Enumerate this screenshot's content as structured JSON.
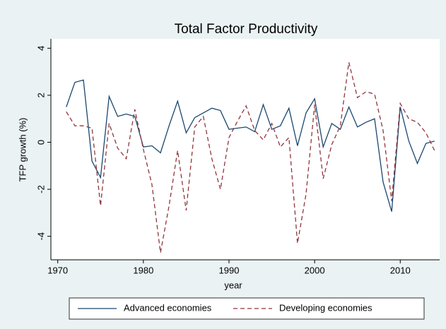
{
  "chart_data": {
    "type": "line",
    "title": "Total Factor Productivity",
    "x_label": "year",
    "y_label": "TFP growth (%)",
    "x": [
      1971,
      1972,
      1973,
      1974,
      1975,
      1976,
      1977,
      1978,
      1979,
      1980,
      1981,
      1982,
      1983,
      1984,
      1985,
      1986,
      1987,
      1988,
      1989,
      1990,
      1991,
      1992,
      1993,
      1994,
      1995,
      1996,
      1997,
      1998,
      1999,
      2000,
      2001,
      2002,
      2003,
      2004,
      2005,
      2006,
      2007,
      2008,
      2009,
      2010,
      2011,
      2012,
      2013,
      2014
    ],
    "series": [
      {
        "name": "Advanced economies",
        "color": "#1a476f",
        "line_style": "solid",
        "values": [
          1.5,
          2.55,
          2.65,
          -0.8,
          -1.5,
          1.95,
          1.1,
          1.2,
          1.1,
          -0.2,
          -0.15,
          -0.45,
          0.7,
          1.75,
          0.4,
          1.05,
          1.25,
          1.45,
          1.35,
          0.55,
          0.6,
          0.65,
          0.45,
          1.6,
          0.55,
          0.7,
          1.45,
          -0.15,
          1.25,
          1.85,
          -0.2,
          0.8,
          0.55,
          1.5,
          0.65,
          0.85,
          1.0,
          -1.7,
          -2.95,
          1.5,
          0.05,
          -0.9,
          -0.05,
          0.05
        ]
      },
      {
        "name": "Developing economies",
        "color": "#90353b",
        "line_style": "dashed",
        "values": [
          1.3,
          0.7,
          0.7,
          0.6,
          -2.7,
          0.8,
          -0.25,
          -0.7,
          1.4,
          -0.3,
          -1.8,
          -4.7,
          -2.7,
          -0.35,
          -2.9,
          0.65,
          1.1,
          -0.7,
          -2.0,
          0.2,
          0.9,
          1.55,
          0.5,
          0.1,
          0.8,
          -0.2,
          0.2,
          -4.3,
          -2.2,
          1.6,
          -1.55,
          -0.1,
          0.7,
          3.4,
          1.9,
          2.15,
          2.05,
          0.5,
          -2.5,
          1.65,
          1.0,
          0.85,
          0.4,
          -0.35
        ]
      }
    ],
    "xlim": [
      1969.2,
      2014.6
    ],
    "xticks": [
      1970,
      1980,
      1990,
      2000,
      2010
    ],
    "ylim": [
      -5,
      4.4
    ],
    "yticks": [
      -4,
      -2,
      0,
      2,
      4
    ],
    "grid": false,
    "legend": "bottom"
  }
}
